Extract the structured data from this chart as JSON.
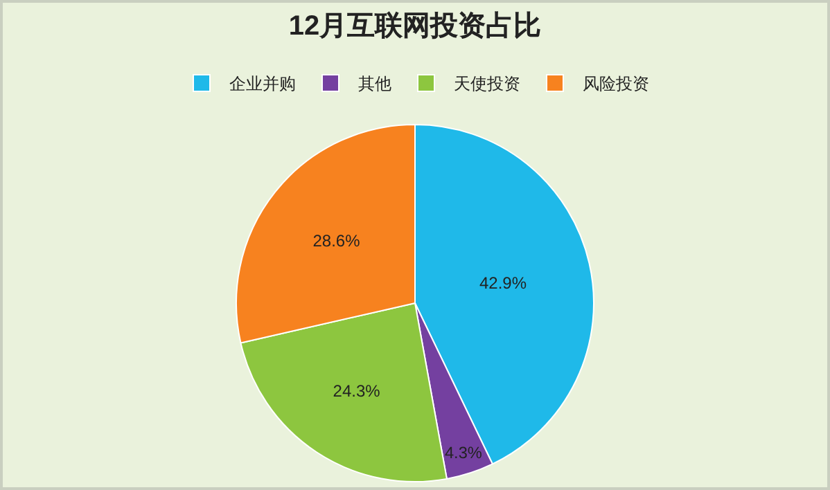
{
  "chart_data": {
    "type": "pie",
    "title": "12月互联网投资占比",
    "categories": [
      "企业并购",
      "其他",
      "天使投资",
      "风险投资"
    ],
    "values": [
      42.9,
      4.3,
      24.3,
      28.6
    ],
    "value_labels": [
      "42.9%",
      "4.3%",
      "24.3%",
      "28.6%"
    ],
    "colors": [
      "#1fb9e9",
      "#7440a0",
      "#8dc63f",
      "#f7821f"
    ],
    "legend": "top"
  }
}
